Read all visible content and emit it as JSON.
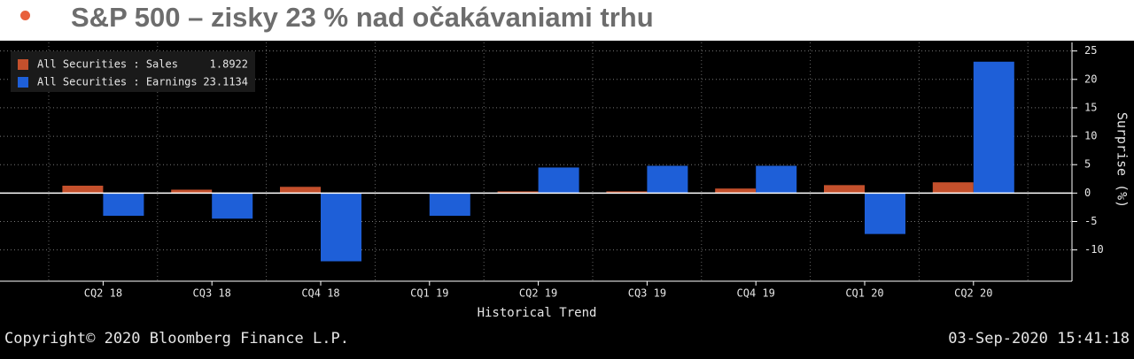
{
  "header": {
    "title": "S&P 500 – zisky 23 % nad očakávaniami trhu"
  },
  "chart_data": {
    "type": "bar",
    "x_label": "Historical Trend",
    "y_label": "Surprise (%)",
    "categories": [
      "CQ2 18",
      "CQ3 18",
      "CQ4 18",
      "CQ1 19",
      "CQ2 19",
      "CQ3 19",
      "CQ4 19",
      "CQ1 20",
      "CQ2 20"
    ],
    "series": [
      {
        "name": "All Securities : Sales",
        "color": "#c4502c",
        "values": [
          1.3,
          0.6,
          1.1,
          0,
          0.3,
          0.3,
          0.8,
          1.4,
          1.8922
        ]
      },
      {
        "name": "All Securities : Earnings",
        "color": "#1e5fd8",
        "values": [
          -4,
          -4.5,
          -12,
          -4,
          4.5,
          4.8,
          4.8,
          -7.2,
          23.1134
        ]
      }
    ],
    "ylim": [
      -15.5,
      26.5
    ],
    "yticks": [
      -10,
      -5,
      0,
      5,
      10,
      15,
      20,
      25
    ],
    "grid": true,
    "legend": "top-left"
  },
  "footer": {
    "copyright": "Copyright© 2020 Bloomberg Finance L.P.",
    "timestamp": "03-Sep-2020 15:41:18"
  }
}
